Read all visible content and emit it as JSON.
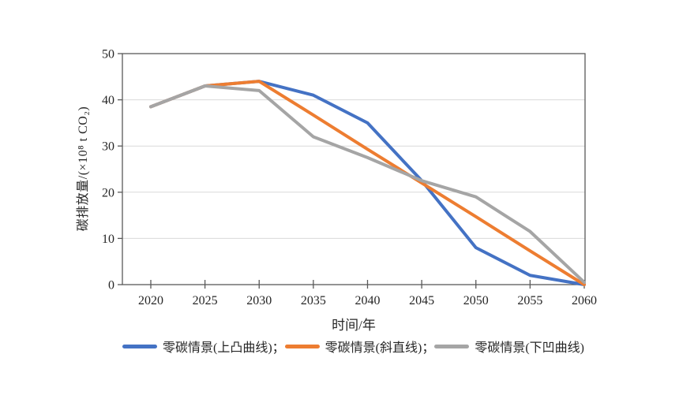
{
  "chart_data": {
    "type": "line",
    "x": [
      2020,
      2025,
      2030,
      2035,
      2040,
      2045,
      2050,
      2055,
      2060
    ],
    "series": [
      {
        "name": "零碳情景(上凸曲线)",
        "color": "#4472C4",
        "values": [
          38.5,
          43,
          44,
          41,
          35,
          22.5,
          8,
          2,
          0
        ]
      },
      {
        "name": "零碳情景(斜直线)",
        "color": "#ED7D31",
        "values": [
          38.5,
          43,
          44,
          36.7,
          29.3,
          22,
          14.7,
          7.3,
          0
        ]
      },
      {
        "name": "零碳情景(下凹曲线)",
        "color": "#A5A5A5",
        "values": [
          38.5,
          43,
          42,
          32,
          27.5,
          22.5,
          19,
          11.5,
          0.5
        ]
      }
    ],
    "legend_labels": [
      "零碳情景(上凸曲线)；",
      "零碳情景(斜直线)；",
      "零碳情景(下凹曲线)"
    ],
    "xlabel": "时间/年",
    "ylabel": "碳排放量/(×10⁸ t CO₂)",
    "ylim": [
      0,
      50
    ],
    "yticks": [
      0,
      10,
      20,
      30,
      40,
      50
    ],
    "grid": "horizontal",
    "gridline_color": "#d9d9d9",
    "axis_color": "#595959",
    "legend_position": "bottom",
    "line_width": 4
  }
}
